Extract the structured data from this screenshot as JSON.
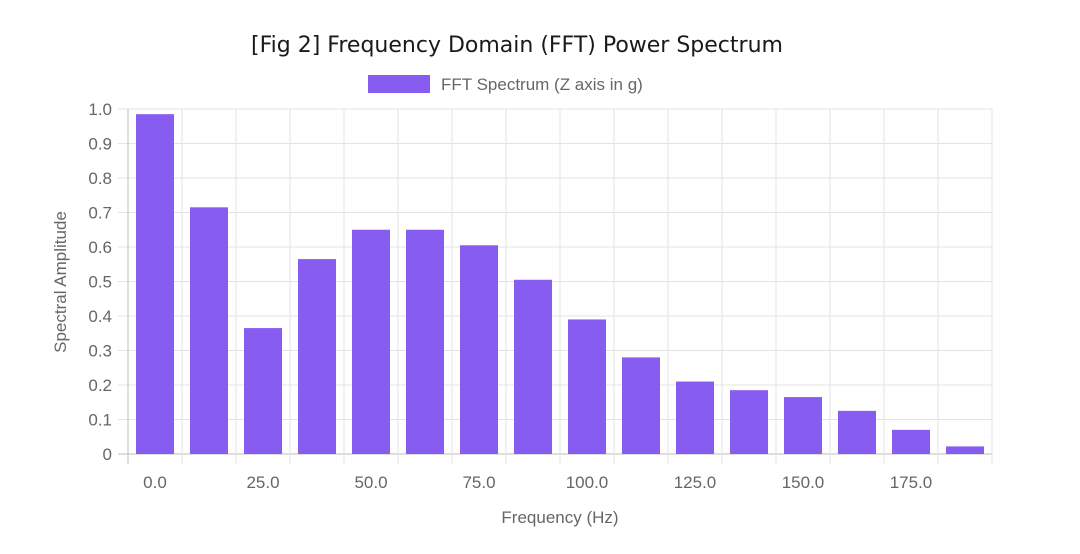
{
  "chart_data": {
    "type": "bar",
    "title": "[Fig 2] Frequency Domain (FFT) Power Spectrum",
    "xlabel": "Frequency (Hz)",
    "ylabel": "Spectral Amplitude",
    "x": [
      0,
      12.5,
      25,
      37.5,
      50,
      62.5,
      75,
      87.5,
      100,
      112.5,
      125,
      137.5,
      150,
      162.5,
      175,
      187.5
    ],
    "x_tick_labels": [
      "0.0",
      "25.0",
      "50.0",
      "75.0",
      "100.0",
      "125.0",
      "150.0",
      "175.0"
    ],
    "y_tick_labels": [
      "0",
      "0.1",
      "0.2",
      "0.3",
      "0.4",
      "0.5",
      "0.6",
      "0.7",
      "0.8",
      "0.9",
      "1.0"
    ],
    "ylim": [
      0,
      1.0
    ],
    "grid": true,
    "legend_position": "top-center",
    "series": [
      {
        "name": "FFT Spectrum (Z axis in g)",
        "color": "#875cf0",
        "values": [
          0.985,
          0.715,
          0.365,
          0.565,
          0.65,
          0.65,
          0.605,
          0.505,
          0.39,
          0.28,
          0.21,
          0.185,
          0.165,
          0.125,
          0.07,
          0.022
        ]
      }
    ]
  }
}
